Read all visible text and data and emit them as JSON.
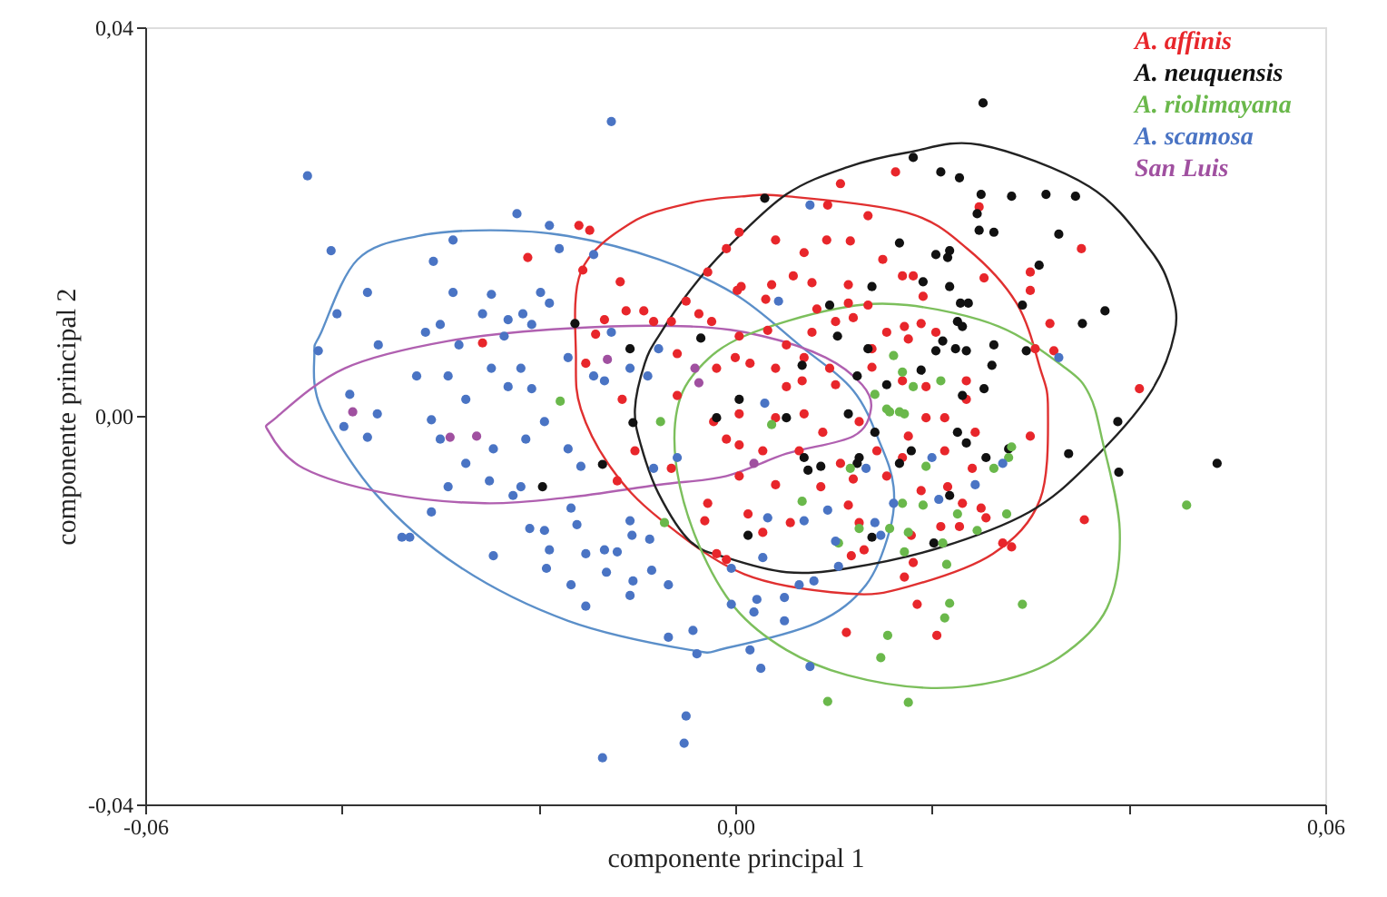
{
  "chart_data": {
    "type": "scatter",
    "xlabel": "componente principal 1",
    "ylabel": "componente principal 2",
    "xlim": [
      -0.06,
      0.06
    ],
    "ylim": [
      -0.04,
      0.04
    ],
    "xticks": [
      {
        "value": -0.06,
        "label": "-0,06"
      },
      {
        "value": -0.04,
        "label": null
      },
      {
        "value": -0.02,
        "label": null
      },
      {
        "value": 0,
        "label": "0,00"
      },
      {
        "value": 0.02,
        "label": null
      },
      {
        "value": 0.04,
        "label": null
      },
      {
        "value": 0.06,
        "label": "0,06"
      }
    ],
    "yticks": [
      {
        "value": -0.04,
        "label": "-0,04"
      },
      {
        "value": 0,
        "label": "0,00"
      },
      {
        "value": 0.04,
        "label": "0,04"
      }
    ],
    "grid": false,
    "legend": "top right",
    "series": [
      {
        "name": "A. affinis",
        "color": "#e8262b",
        "marker": "circle",
        "x": [
          -0.0159,
          -0.0148,
          -0.0211,
          -0.0155,
          -0.0117,
          -0.0111,
          -0.0093,
          -0.0133,
          -0.0142,
          -0.0083,
          -0.0065,
          -0.005,
          -0.0028,
          -0.0009,
          0.0002,
          -0.0037,
          -0.0024,
          -0.0059,
          -0.0019,
          0,
          -0.0257,
          -0.0115,
          -0.0059,
          -0.0152,
          0.0107,
          0.0163,
          0.0094,
          0.0135,
          0.0004,
          0.0041,
          0.007,
          0.0093,
          0.0117,
          0.015,
          0.0037,
          0.0059,
          0.0078,
          0.0115,
          0.017,
          0.0181,
          0.0191,
          0.0006,
          0.0031,
          0.0083,
          0.0115,
          0.0135,
          0.0102,
          0.012,
          0.0154,
          0.0172,
          0.0189,
          0.0204,
          0.0004,
          0.0033,
          0.0052,
          0.0078,
          0.0139,
          0.0176,
          0.0015,
          0.0041,
          0.007,
          0.0096,
          0.0052,
          0.0068,
          0.0102,
          0.0139,
          0.017,
          0.0194,
          0.0235,
          0.0235,
          0.0248,
          0.03,
          0.03,
          0.032,
          0.0305,
          0.0324,
          0.0352,
          0.0411,
          0.0253,
          0.0004,
          0.0041,
          0.007,
          0.0089,
          0.0126,
          0.0176,
          0.0194,
          0.0213,
          0.0244,
          0.03,
          0.0004,
          0.0028,
          0.0065,
          0.0107,
          0.0144,
          0.017,
          0.0213,
          0.0241,
          0.0004,
          0.0041,
          0.0087,
          0.012,
          0.0154,
          0.0189,
          0.0216,
          0.0231,
          0.025,
          0.0013,
          0.0056,
          0.0115,
          0.0126,
          0.0179,
          0.0209,
          0.0228,
          0.0255,
          0.0028,
          0.0118,
          0.0131,
          0.0181,
          0.0272,
          0.0281,
          0.0355,
          0.0172,
          0.0185,
          0.0113,
          0.0205,
          -0.012,
          -0.0065,
          -0.0028,
          -0.0031,
          -0.0019,
          -0.0009,
          -0.0102,
          -0.0022,
          -0.0009
        ],
        "values": [
          0.0196,
          0.0191,
          0.0163,
          0.015,
          0.0138,
          0.0108,
          0.0108,
          0.0099,
          0.0084,
          0.0097,
          0.0097,
          0.0118,
          0.0148,
          0.0172,
          0.0129,
          0.0105,
          0.0097,
          0.0064,
          0.0049,
          0.006,
          0.0075,
          0.0017,
          0.0021,
          0.0054,
          0.0239,
          0.0251,
          0.0217,
          0.0206,
          0.0189,
          0.0181,
          0.0168,
          0.0181,
          0.018,
          0.0161,
          0.0135,
          0.0144,
          0.0137,
          0.0135,
          0.0144,
          0.0144,
          0.0123,
          0.0133,
          0.012,
          0.011,
          0.0116,
          0.0114,
          0.0097,
          0.0101,
          0.0086,
          0.0092,
          0.0095,
          0.0086,
          0.0082,
          0.0088,
          0.0073,
          0.0086,
          0.0069,
          0.0079,
          0.0054,
          0.0049,
          0.006,
          0.0049,
          0.003,
          0.0036,
          0.0032,
          0.005,
          0.0036,
          0.003,
          0.0036,
          0.0017,
          0.0215,
          0.0148,
          0.0129,
          0.0095,
          0.0069,
          0.0067,
          0.0172,
          0.0028,
          0.0142,
          0.0002,
          -0.0002,
          0.0002,
          -0.0017,
          -0.0006,
          -0.0021,
          -0.0002,
          -0.0002,
          -0.0017,
          -0.0021,
          -0.003,
          -0.0036,
          -0.0036,
          -0.0049,
          -0.0036,
          -0.0043,
          -0.0036,
          -0.0054,
          -0.0062,
          -0.0071,
          -0.0073,
          -0.0065,
          -0.0062,
          -0.0077,
          -0.0073,
          -0.009,
          -0.0095,
          -0.0101,
          -0.011,
          -0.0092,
          -0.011,
          -0.0123,
          -0.0114,
          -0.0114,
          -0.0105,
          -0.012,
          -0.0144,
          -0.0138,
          -0.0151,
          -0.0131,
          -0.0135,
          -0.0107,
          -0.0166,
          -0.0194,
          -0.0223,
          -0.0226,
          -0.0067,
          -0.0054,
          -0.009,
          -0.0108,
          -0.0142,
          -0.0148,
          -0.0036,
          -0.0006,
          -0.0024
        ]
      },
      {
        "name": "A. neuquensis",
        "color": "#111111",
        "marker": "circle",
        "x": [
          0.0252,
          0.0181,
          0.0209,
          0.0228,
          0.025,
          0.0281,
          0.0316,
          0.0346,
          0.0246,
          0.0248,
          0.0263,
          0.0329,
          0.003,
          0.0167,
          0.0204,
          0.0218,
          0.0216,
          0.0309,
          0.0191,
          0.0139,
          0.0218,
          0.0292,
          0.0229,
          0.0237,
          0.0376,
          0.0353,
          0.0096,
          0.0226,
          0.0231,
          0.0104,
          0.0211,
          0.0263,
          0.0296,
          0.0135,
          0.0204,
          0.0224,
          0.0235,
          0.0068,
          0.0189,
          0.0261,
          0.0154,
          0.0253,
          0.0124,
          0.0231,
          0.0052,
          0.0115,
          0.0142,
          0.0226,
          0.0235,
          0.0278,
          0.0255,
          0.0339,
          0.0389,
          0.039,
          0.049,
          0.007,
          0.0087,
          0.0074,
          0.0124,
          0.0126,
          0.0179,
          0.0167,
          0.0218,
          0.0013,
          0.0139,
          0.0202,
          -0.0163,
          -0.0107,
          -0.0035,
          0.0004,
          -0.0196,
          -0.0135,
          -0.0104,
          -0.0019
        ],
        "values": [
          0.0322,
          0.0266,
          0.0251,
          0.0245,
          0.0228,
          0.0226,
          0.0228,
          0.0226,
          0.0208,
          0.0191,
          0.0189,
          0.0187,
          0.0224,
          0.0178,
          0.0166,
          0.017,
          0.0163,
          0.0155,
          0.0138,
          0.0133,
          0.0133,
          0.0114,
          0.0116,
          0.0116,
          0.0108,
          0.0095,
          0.0114,
          0.0097,
          0.0092,
          0.0082,
          0.0077,
          0.0073,
          0.0067,
          0.0069,
          0.0067,
          0.0069,
          0.0067,
          0.0052,
          0.0047,
          0.0052,
          0.0032,
          0.0028,
          0.0041,
          0.0021,
          -0.0002,
          0.0002,
          -0.0017,
          -0.0017,
          -0.0028,
          -0.0034,
          -0.0043,
          -0.0039,
          -0.0006,
          -0.0058,
          -0.0049,
          -0.0043,
          -0.0052,
          -0.0056,
          -0.0049,
          -0.0043,
          -0.0036,
          -0.0049,
          -0.0082,
          -0.0123,
          -0.0125,
          -0.0131,
          0.0095,
          0.0069,
          0.008,
          0.0017,
          -0.0073,
          -0.005,
          -0.0007,
          -0.0002
        ]
      },
      {
        "name": "A. riolimayana",
        "color": "#6ab84b",
        "marker": "circle",
        "x": [
          0.0037,
          0.0157,
          0.0172,
          0.0117,
          0.0194,
          0.0263,
          0.0278,
          0.0281,
          0.0068,
          0.017,
          0.0191,
          0.0226,
          0.0276,
          0.0126,
          0.0105,
          0.0176,
          0.0246,
          0.0157,
          0.0172,
          0.0211,
          0.0215,
          0.0218,
          0.0213,
          0.0292,
          0.0155,
          0.0148,
          0.0094,
          0.0176,
          0.0459,
          0.0161,
          0.017,
          0.0209,
          0.0181,
          0.0142,
          0.0154,
          0.0167,
          -0.0076,
          -0.0072,
          -0.0178
        ],
        "values": [
          -0.0009,
          0.0004,
          0.0002,
          -0.0054,
          -0.0052,
          -0.0054,
          -0.0043,
          -0.0032,
          -0.0088,
          -0.009,
          -0.0092,
          -0.0101,
          -0.0101,
          -0.0116,
          -0.0131,
          -0.012,
          -0.0118,
          -0.0116,
          -0.014,
          -0.0131,
          -0.0153,
          -0.0193,
          -0.0208,
          -0.0194,
          -0.0226,
          -0.0249,
          -0.0294,
          -0.0295,
          -0.0092,
          0.0062,
          0.0045,
          0.0036,
          0.003,
          0.0022,
          0.0007,
          0.0004,
          -0.0006,
          -0.011,
          0.0015
        ]
      },
      {
        "name": "A. scamosa",
        "color": "#4a74c4",
        "marker": "circle",
        "x": [
          -0.0435,
          -0.0126,
          -0.0411,
          -0.0307,
          -0.0287,
          -0.0222,
          -0.0189,
          -0.0179,
          -0.0144,
          -0.0374,
          -0.0405,
          -0.0287,
          -0.0248,
          -0.0198,
          -0.0189,
          -0.0424,
          -0.0363,
          -0.0315,
          -0.03,
          -0.0281,
          -0.0257,
          -0.0231,
          -0.0216,
          -0.0207,
          -0.0235,
          -0.0324,
          -0.0292,
          -0.0248,
          -0.0218,
          -0.017,
          -0.0392,
          -0.0274,
          -0.0231,
          -0.0207,
          -0.0144,
          -0.0133,
          -0.0107,
          -0.0089,
          -0.0126,
          -0.0078,
          -0.0364,
          -0.0398,
          -0.0374,
          -0.0309,
          -0.03,
          -0.0274,
          -0.0246,
          -0.0213,
          -0.0194,
          -0.017,
          -0.0157,
          -0.0292,
          -0.025,
          -0.0218,
          -0.0309,
          -0.0226,
          -0.0339,
          -0.0331,
          -0.0246,
          -0.0209,
          -0.0194,
          -0.0189,
          -0.0192,
          -0.0167,
          -0.0161,
          -0.0152,
          -0.0167,
          -0.0152,
          -0.0133,
          -0.012,
          -0.0131,
          -0.0105,
          -0.0087,
          -0.0104,
          -0.0107,
          -0.0085,
          -0.0068,
          -0.0068,
          -0.0043,
          -0.0039,
          -0.005,
          -0.0052,
          -0.0135,
          -0.0107,
          -0.0083,
          -0.0059,
          -0.0004,
          0.0028,
          -0.0004,
          0.0022,
          0.005,
          0.0065,
          0.008,
          0.005,
          0.0019,
          0.0015,
          0.0026,
          0.0076,
          0.0105,
          0.0102,
          0.0148,
          0.0142,
          0.0161,
          0.0244,
          0.0094,
          0.007,
          0.0033,
          0.0207,
          0.0133,
          0.02,
          0.0272,
          0.0076,
          0.0044,
          0.0329,
          0.003
        ],
        "values": [
          0.0247,
          0.0303,
          0.017,
          0.0159,
          0.0181,
          0.0208,
          0.0196,
          0.0172,
          0.0166,
          0.0127,
          0.0105,
          0.0127,
          0.0125,
          0.0127,
          0.0116,
          0.0067,
          0.0073,
          0.0086,
          0.0094,
          0.0073,
          0.0105,
          0.0099,
          0.0105,
          0.0094,
          0.0082,
          0.0041,
          0.0041,
          0.0049,
          0.0049,
          0.006,
          0.0022,
          0.0017,
          0.003,
          0.0028,
          0.0041,
          0.0036,
          0.0049,
          0.0041,
          0.0086,
          0.0069,
          0.0002,
          -0.0011,
          -0.0022,
          -0.0004,
          -0.0024,
          -0.0049,
          -0.0034,
          -0.0024,
          -0.0006,
          -0.0034,
          -0.0052,
          -0.0073,
          -0.0067,
          -0.0073,
          -0.0099,
          -0.0082,
          -0.0125,
          -0.0125,
          -0.0144,
          -0.0116,
          -0.0118,
          -0.0138,
          -0.0157,
          -0.0095,
          -0.0112,
          -0.0142,
          -0.0174,
          -0.0196,
          -0.0138,
          -0.014,
          -0.0161,
          -0.0123,
          -0.0127,
          -0.017,
          -0.0185,
          -0.0159,
          -0.0174,
          -0.0228,
          -0.0221,
          -0.0245,
          -0.0309,
          -0.0337,
          -0.0352,
          -0.0108,
          -0.0054,
          -0.0043,
          -0.0157,
          -0.0146,
          -0.0194,
          -0.0189,
          -0.0187,
          -0.0174,
          -0.017,
          -0.0211,
          -0.0202,
          -0.0241,
          -0.026,
          -0.0258,
          -0.0155,
          -0.0129,
          -0.0123,
          -0.011,
          -0.009,
          -0.0071,
          -0.0097,
          -0.0108,
          -0.0105,
          -0.0086,
          -0.0054,
          -0.0043,
          -0.0049,
          0.0217,
          0.0118,
          0.006,
          0.0013
        ]
      },
      {
        "name": "San Luis",
        "color": "#a050a0",
        "marker": "circle",
        "x": [
          -0.0389,
          -0.013,
          -0.0041,
          -0.0037,
          -0.029,
          -0.0263,
          0.0019
        ],
        "values": [
          0.0004,
          0.0058,
          0.0049,
          0.0034,
          -0.0022,
          -0.0021,
          -0.0049
        ]
      }
    ]
  }
}
